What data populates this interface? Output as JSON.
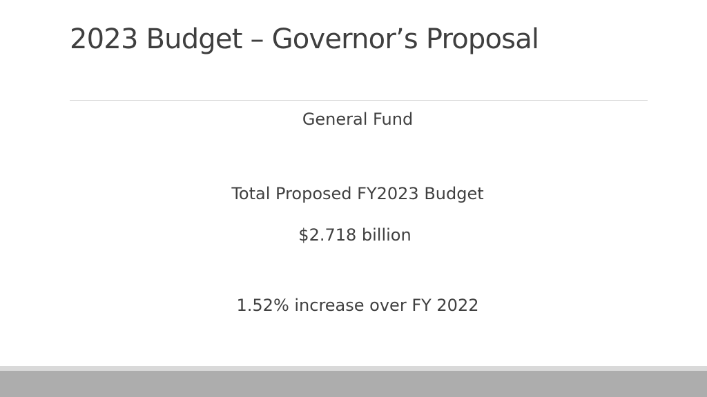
{
  "slide": {
    "title": "2023 Budget – Governor’s Proposal",
    "lines": [
      "General Fund",
      "Total Proposed FY2023 Budget",
      "$2.718 billion",
      "1.52% increase over FY 2022"
    ]
  },
  "colors": {
    "title_text": "#3f3f3f",
    "body_text": "#404040",
    "divider": "#d4d4d4",
    "footer_light": "#d9d9d9",
    "footer_dark": "#adadad"
  }
}
